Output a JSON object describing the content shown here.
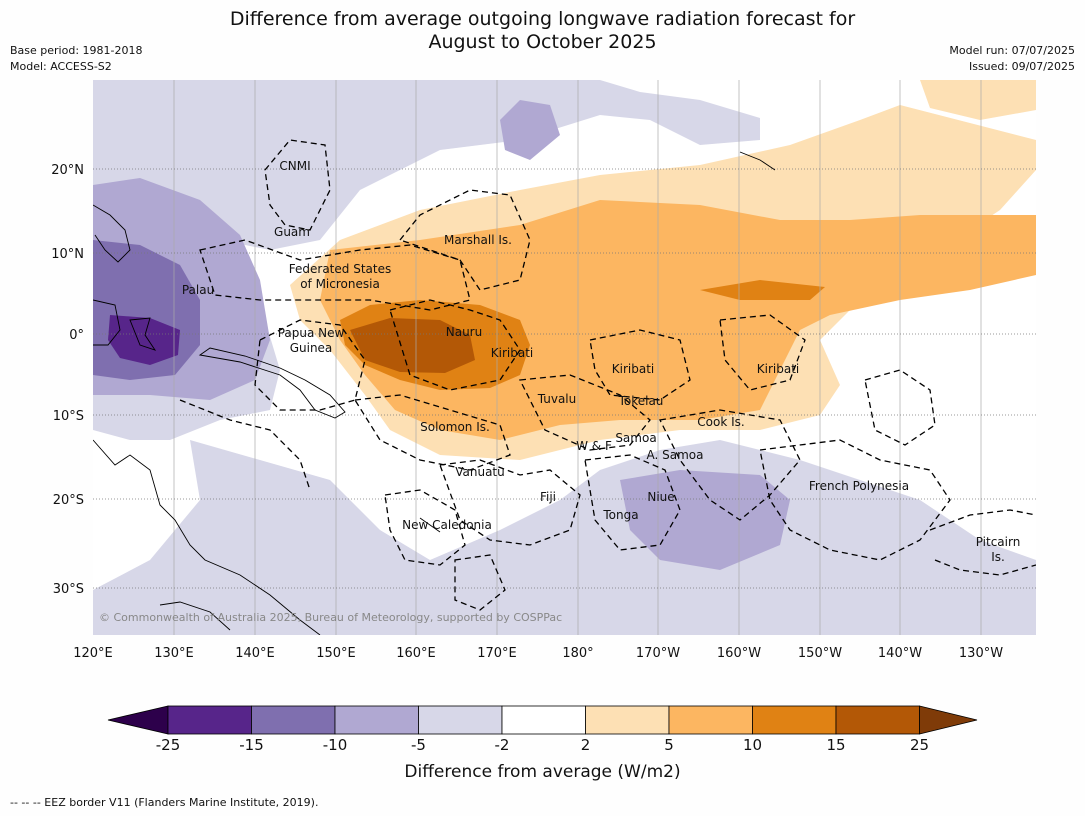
{
  "title": {
    "line1": "Difference from average outgoing longwave radiation forecast for",
    "line2": "August to October 2025"
  },
  "meta": {
    "base_period": "Base period: 1981-2018",
    "model": "Model: ACCESS-S2",
    "model_run": "Model run: 07/07/2025",
    "issued": "Issued: 09/07/2025"
  },
  "map": {
    "lon_labels": [
      "120°E",
      "130°E",
      "140°E",
      "150°E",
      "160°E",
      "170°E",
      "180°",
      "170°W",
      "160°W",
      "150°W",
      "140°W",
      "130°W"
    ],
    "lat_labels": [
      "20°N",
      "10°N",
      "0°",
      "10°S",
      "20°S",
      "30°S"
    ],
    "copyright": "© Commonwealth of Australia 2025, Bureau of Meteorology, supported by COSPPac",
    "places": [
      {
        "name": "CNMI",
        "lines": [
          "CNMI"
        ]
      },
      {
        "name": "Guam",
        "lines": [
          "Guam"
        ]
      },
      {
        "name": "Marshall Is.",
        "lines": [
          "Marshall Is."
        ]
      },
      {
        "name": "Federated States of Micronesia",
        "lines": [
          "Federated States",
          "of Micronesia"
        ]
      },
      {
        "name": "Palau",
        "lines": [
          "Palau"
        ]
      },
      {
        "name": "Papua New Guinea",
        "lines": [
          "Papua New",
          "Guinea"
        ]
      },
      {
        "name": "Nauru",
        "lines": [
          "Nauru"
        ]
      },
      {
        "name": "Kiribati (west)",
        "lines": [
          "Kiribati"
        ]
      },
      {
        "name": "Kiribati (central)",
        "lines": [
          "Kiribati"
        ]
      },
      {
        "name": "Kiribati (east)",
        "lines": [
          "Kiribati"
        ]
      },
      {
        "name": "Tuvalu",
        "lines": [
          "Tuvalu"
        ]
      },
      {
        "name": "Tokelau",
        "lines": [
          "Tokelau"
        ]
      },
      {
        "name": "Cook Is.",
        "lines": [
          "Cook Is."
        ]
      },
      {
        "name": "Solomon Is.",
        "lines": [
          "Solomon Is."
        ]
      },
      {
        "name": "Samoa",
        "lines": [
          "Samoa"
        ]
      },
      {
        "name": "W & F",
        "lines": [
          "W & F"
        ]
      },
      {
        "name": "A. Samoa",
        "lines": [
          "A. Samoa"
        ]
      },
      {
        "name": "Vanuatu",
        "lines": [
          "Vanuatu"
        ]
      },
      {
        "name": "Fiji",
        "lines": [
          "Fiji"
        ]
      },
      {
        "name": "Niue",
        "lines": [
          "Niue"
        ]
      },
      {
        "name": "Tonga",
        "lines": [
          "Tonga"
        ]
      },
      {
        "name": "French Polynesia",
        "lines": [
          "French Polynesia"
        ]
      },
      {
        "name": "New Caledonia",
        "lines": [
          "New Caledonia"
        ]
      },
      {
        "name": "Pitcairn Is.",
        "lines": [
          "Pitcairn",
          "Is."
        ]
      }
    ]
  },
  "colorbar": {
    "ticks": [
      "-25",
      "-15",
      "-10",
      "-5",
      "-2",
      "2",
      "5",
      "10",
      "15",
      "25"
    ],
    "colors": [
      "#57258a",
      "#7f6faf",
      "#b0a8d2",
      "#d7d7e8",
      "#ffffff",
      "#fde0b4",
      "#fcb661",
      "#e08214",
      "#b35806"
    ],
    "extend_low": "#2d004b",
    "extend_high": "#7f3b08",
    "label": "Difference from average (W/m2)"
  },
  "footnote": "--  --  -- EEZ border V11 (Flanders Marine Institute, 2019)."
}
